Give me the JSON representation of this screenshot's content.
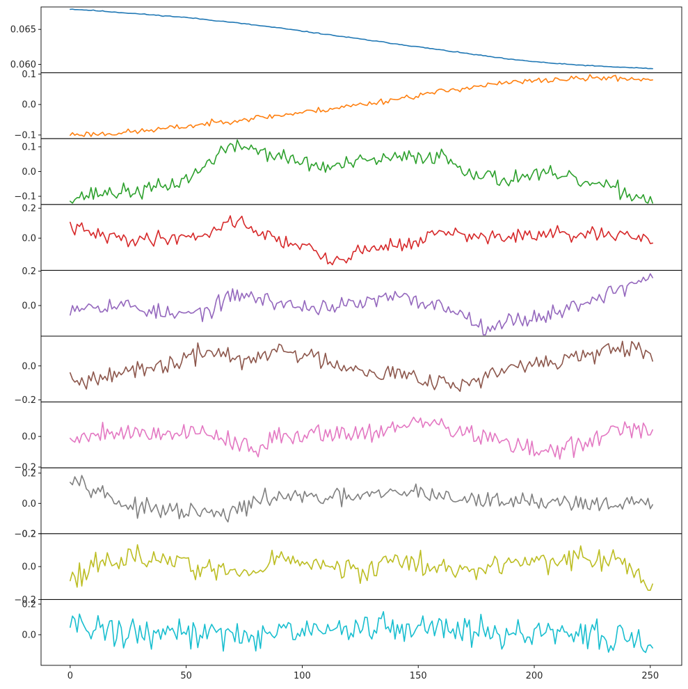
{
  "chart_data": {
    "type": "line",
    "layout": "stacked-panels",
    "grid": false,
    "x": {
      "range": [
        0,
        251
      ],
      "lim": [
        -12.55,
        263.55
      ],
      "ticks": [
        0,
        50,
        100,
        150,
        200,
        250
      ],
      "tick_labels": [
        "0",
        "50",
        "100",
        "150",
        "200",
        "250"
      ]
    },
    "panels": [
      {
        "name": "",
        "color": "#1f77b4",
        "ylim": [
          0.0588,
          0.0682
        ],
        "yticks": [
          0.06,
          0.065
        ],
        "ytick_labels": [
          "0.060",
          "0.065"
        ],
        "anchors": [
          [
            0,
            0.0679
          ],
          [
            10,
            0.0677
          ],
          [
            30,
            0.0672
          ],
          [
            50,
            0.0667
          ],
          [
            70,
            0.066
          ],
          [
            90,
            0.0652
          ],
          [
            110,
            0.0643
          ],
          [
            130,
            0.0634
          ],
          [
            150,
            0.0625
          ],
          [
            170,
            0.0616
          ],
          [
            190,
            0.0607
          ],
          [
            210,
            0.0601
          ],
          [
            230,
            0.0597
          ],
          [
            251,
            0.0594
          ]
        ],
        "noise": 4e-05,
        "seed": 11
      },
      {
        "name": "",
        "color": "#ff7f0e",
        "ylim": [
          -0.112,
          0.104
        ],
        "yticks": [
          -0.1,
          0.0,
          0.1
        ],
        "ytick_labels": [
          "−0.1",
          "0.0",
          "0.1"
        ],
        "anchors": [
          [
            0,
            -0.098
          ],
          [
            15,
            -0.096
          ],
          [
            30,
            -0.088
          ],
          [
            50,
            -0.072
          ],
          [
            70,
            -0.052
          ],
          [
            90,
            -0.036
          ],
          [
            110,
            -0.016
          ],
          [
            130,
            0.005
          ],
          [
            150,
            0.03
          ],
          [
            170,
            0.055
          ],
          [
            190,
            0.072
          ],
          [
            210,
            0.082
          ],
          [
            230,
            0.088
          ],
          [
            251,
            0.082
          ]
        ],
        "noise": 0.006,
        "seed": 23
      },
      {
        "name": "",
        "color": "#2ca02c",
        "ylim": [
          -0.133,
          0.133
        ],
        "yticks": [
          -0.1,
          0.0,
          0.1
        ],
        "ytick_labels": [
          "−0.1",
          "0.0",
          "0.1"
        ],
        "anchors": [
          [
            0,
            -0.105
          ],
          [
            15,
            -0.085
          ],
          [
            30,
            -0.08
          ],
          [
            45,
            -0.05
          ],
          [
            55,
            -0.005
          ],
          [
            65,
            0.085
          ],
          [
            75,
            0.105
          ],
          [
            90,
            0.06
          ],
          [
            110,
            0.015
          ],
          [
            130,
            0.045
          ],
          [
            150,
            0.06
          ],
          [
            160,
            0.065
          ],
          [
            170,
            0.01
          ],
          [
            185,
            -0.035
          ],
          [
            200,
            -0.01
          ],
          [
            210,
            -0.02
          ],
          [
            225,
            -0.05
          ],
          [
            240,
            -0.085
          ],
          [
            251,
            -0.12
          ]
        ],
        "noise": 0.02,
        "seed": 37
      },
      {
        "name": "",
        "color": "#d62728",
        "ylim": [
          -0.215,
          0.225
        ],
        "yticks": [
          0.0,
          0.2
        ],
        "ytick_labels": [
          "0.0",
          "0.2"
        ],
        "anchors": [
          [
            0,
            0.075
          ],
          [
            12,
            0.02
          ],
          [
            25,
            -0.01
          ],
          [
            45,
            0.005
          ],
          [
            60,
            0.03
          ],
          [
            70,
            0.13
          ],
          [
            78,
            0.07
          ],
          [
            90,
            -0.02
          ],
          [
            100,
            -0.04
          ],
          [
            112,
            -0.165
          ],
          [
            120,
            -0.11
          ],
          [
            135,
            -0.05
          ],
          [
            150,
            -0.03
          ],
          [
            160,
            0.05
          ],
          [
            170,
            0.01
          ],
          [
            190,
            0.01
          ],
          [
            210,
            0.025
          ],
          [
            230,
            0.02
          ],
          [
            251,
            -0.01
          ]
        ],
        "noise": 0.03,
        "seed": 41
      },
      {
        "name": "",
        "color": "#9467bd",
        "ylim": [
          -0.178,
          0.205
        ],
        "yticks": [
          0.0,
          0.2
        ],
        "ytick_labels": [
          "0.0",
          "0.2"
        ],
        "anchors": [
          [
            0,
            -0.005
          ],
          [
            12,
            0.005
          ],
          [
            25,
            0.0
          ],
          [
            45,
            -0.06
          ],
          [
            60,
            -0.03
          ],
          [
            72,
            0.07
          ],
          [
            85,
            0.03
          ],
          [
            100,
            -0.01
          ],
          [
            120,
            0.0
          ],
          [
            140,
            0.05
          ],
          [
            155,
            0.01
          ],
          [
            165,
            -0.02
          ],
          [
            178,
            -0.12
          ],
          [
            195,
            -0.08
          ],
          [
            210,
            -0.04
          ],
          [
            225,
            0.04
          ],
          [
            240,
            0.11
          ],
          [
            251,
            0.18
          ]
        ],
        "noise": 0.03,
        "seed": 53
      },
      {
        "name": "",
        "color": "#8c564b",
        "ylim": [
          -0.212,
          0.175
        ],
        "yticks": [
          0.0,
          -0.2
        ],
        "ytick_labels": [
          "0.0",
          "−0.2"
        ],
        "anchors": [
          [
            0,
            -0.03
          ],
          [
            5,
            -0.1
          ],
          [
            15,
            -0.03
          ],
          [
            30,
            -0.04
          ],
          [
            45,
            0.02
          ],
          [
            60,
            0.08
          ],
          [
            65,
            0.1
          ],
          [
            70,
            0.04
          ],
          [
            78,
            0.02
          ],
          [
            90,
            0.1
          ],
          [
            105,
            0.05
          ],
          [
            120,
            0.0
          ],
          [
            140,
            -0.05
          ],
          [
            155,
            -0.07
          ],
          [
            168,
            -0.12
          ],
          [
            175,
            -0.08
          ],
          [
            190,
            -0.02
          ],
          [
            205,
            0.02
          ],
          [
            220,
            0.06
          ],
          [
            240,
            0.09
          ],
          [
            251,
            0.07
          ]
        ],
        "noise": 0.035,
        "seed": 67
      },
      {
        "name": "",
        "color": "#e377c2",
        "ylim": [
          -0.205,
          0.225
        ],
        "yticks": [
          0.0,
          -0.2
        ],
        "ytick_labels": [
          "0.0",
          "−0.2"
        ],
        "anchors": [
          [
            0,
            -0.02
          ],
          [
            15,
            0.04
          ],
          [
            30,
            0.02
          ],
          [
            45,
            0.03
          ],
          [
            60,
            0.02
          ],
          [
            70,
            -0.02
          ],
          [
            80,
            -0.11
          ],
          [
            90,
            0.0
          ],
          [
            105,
            0.03
          ],
          [
            125,
            0.02
          ],
          [
            140,
            0.06
          ],
          [
            155,
            0.09
          ],
          [
            165,
            0.05
          ],
          [
            180,
            -0.01
          ],
          [
            195,
            -0.08
          ],
          [
            210,
            -0.1
          ],
          [
            222,
            -0.04
          ],
          [
            235,
            0.04
          ],
          [
            251,
            0.02
          ]
        ],
        "noise": 0.04,
        "seed": 79
      },
      {
        "name": "",
        "color": "#7f7f7f",
        "ylim": [
          -0.2,
          0.235
        ],
        "yticks": [
          0.2,
          0.0,
          -0.2
        ],
        "ytick_labels": [
          "0.2",
          "0.0",
          "−0.2"
        ],
        "anchors": [
          [
            0,
            0.19
          ],
          [
            8,
            0.13
          ],
          [
            15,
            0.06
          ],
          [
            25,
            -0.02
          ],
          [
            40,
            -0.05
          ],
          [
            55,
            -0.06
          ],
          [
            68,
            -0.08
          ],
          [
            75,
            -0.02
          ],
          [
            90,
            0.05
          ],
          [
            110,
            0.03
          ],
          [
            130,
            0.05
          ],
          [
            150,
            0.08
          ],
          [
            170,
            0.02
          ],
          [
            190,
            0.02
          ],
          [
            210,
            0.01
          ],
          [
            230,
            0.0
          ],
          [
            251,
            -0.01
          ]
        ],
        "noise": 0.035,
        "seed": 97
      },
      {
        "name": "",
        "color": "#bcbd22",
        "ylim": [
          -0.2,
          0.2
        ],
        "yticks": [
          0.2,
          0.0,
          -0.2
        ],
        "ytick_labels": [
          "0.2",
          "0.0",
          "−0.2"
        ],
        "anchors": [
          [
            0,
            -0.05
          ],
          [
            15,
            0.02
          ],
          [
            30,
            0.06
          ],
          [
            45,
            0.04
          ],
          [
            60,
            -0.02
          ],
          [
            75,
            -0.05
          ],
          [
            90,
            0.05
          ],
          [
            110,
            0.0
          ],
          [
            125,
            -0.04
          ],
          [
            140,
            0.05
          ],
          [
            160,
            -0.02
          ],
          [
            180,
            0.01
          ],
          [
            200,
            0.02
          ],
          [
            215,
            0.05
          ],
          [
            235,
            0.03
          ],
          [
            245,
            -0.04
          ],
          [
            251,
            -0.19
          ]
        ],
        "noise": 0.045,
        "seed": 113
      },
      {
        "name": "",
        "color": "#17becf",
        "ylim": [
          -0.2,
          0.23
        ],
        "yticks": [
          0.2,
          0.0
        ],
        "ytick_labels": [
          "0.2",
          "0.0"
        ],
        "anchors": [
          [
            0,
            0.1
          ],
          [
            10,
            0.05
          ],
          [
            25,
            0.0
          ],
          [
            50,
            0.02
          ],
          [
            75,
            0.0
          ],
          [
            100,
            0.01
          ],
          [
            130,
            0.05
          ],
          [
            150,
            0.05
          ],
          [
            175,
            0.03
          ],
          [
            200,
            -0.01
          ],
          [
            225,
            0.02
          ],
          [
            251,
            -0.07
          ]
        ],
        "noise": 0.06,
        "seed": 131
      }
    ]
  }
}
